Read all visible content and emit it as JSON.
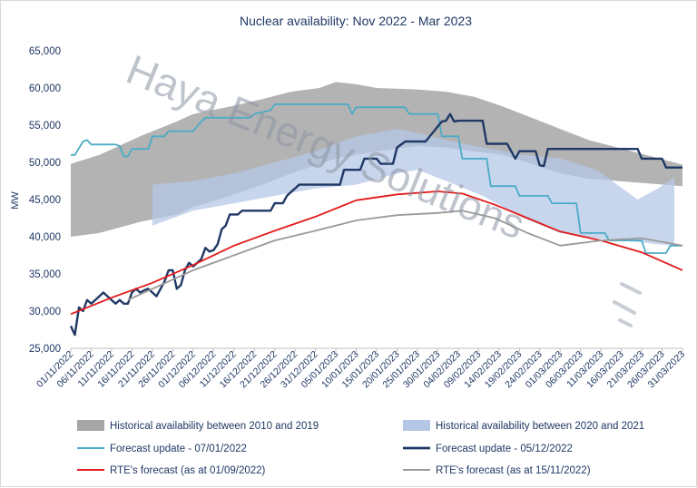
{
  "chart_data": {
    "type": "line",
    "title": "Nuclear availability: Nov 2022 - Mar 2023",
    "ylabel": "MW",
    "xlabel": "",
    "ylim": [
      25000,
      65000
    ],
    "yticks": [
      25000,
      30000,
      35000,
      40000,
      45000,
      50000,
      55000,
      60000,
      65000
    ],
    "ytick_labels": [
      "25,000",
      "30,000",
      "35,000",
      "40,000",
      "45,000",
      "50,000",
      "55,000",
      "60,000",
      "65,000"
    ],
    "x_range": [
      "01/11/2022",
      "31/03/2023"
    ],
    "x_tick_labels": [
      "01/11/2022",
      "06/11/2022",
      "11/11/2022",
      "16/11/2022",
      "21/11/2022",
      "26/11/2022",
      "01/12/2022",
      "06/12/2022",
      "11/12/2022",
      "16/12/2022",
      "21/12/2022",
      "26/12/2022",
      "31/12/2022",
      "05/01/2023",
      "10/01/2023",
      "15/01/2023",
      "20/01/2023",
      "25/01/2023",
      "30/01/2023",
      "04/02/2023",
      "09/02/2023",
      "14/02/2023",
      "19/02/2023",
      "24/02/2023",
      "01/03/2023",
      "06/03/2023",
      "11/03/2023",
      "16/03/2023",
      "21/03/2023",
      "26/03/2023",
      "31/03/2023"
    ],
    "grid": false,
    "legend_position": "bottom",
    "bands": [
      {
        "name": "Historical availability between 2010 and 2019",
        "color": "#a6a6a6",
        "x": [
          "01/11/2022",
          "08/11/2022",
          "18/11/2022",
          "27/11/2022",
          "01/12/2022",
          "10/12/2022",
          "18/12/2022",
          "25/12/2022",
          "01/01/2023",
          "05/01/2023",
          "10/01/2023",
          "15/01/2023",
          "25/01/2023",
          "01/02/2023",
          "08/02/2023",
          "15/02/2023",
          "22/02/2023",
          "01/03/2023",
          "08/03/2023",
          "15/03/2023",
          "22/03/2023",
          "31/03/2023"
        ],
        "upper": [
          49800,
          51000,
          53500,
          55500,
          56500,
          57500,
          58500,
          59500,
          60000,
          60800,
          60500,
          60000,
          59800,
          59500,
          58800,
          57500,
          56000,
          54500,
          53000,
          52000,
          51000,
          49700
        ],
        "lower": [
          40000,
          40500,
          42000,
          43000,
          44000,
          45500,
          47000,
          48500,
          49800,
          50500,
          51000,
          51500,
          52200,
          52000,
          51500,
          51000,
          49800,
          48500,
          47800,
          47500,
          47200,
          46800
        ]
      },
      {
        "name": "Historical availability between 2020 and 2021",
        "color": "#b4c7e7",
        "x": [
          "21/11/2022",
          "01/12/2022",
          "11/12/2022",
          "21/12/2022",
          "31/12/2022",
          "10/01/2023",
          "20/01/2023",
          "25/01/2023",
          "01/02/2023",
          "10/02/2023",
          "20/02/2023",
          "01/03/2023",
          "10/03/2023",
          "15/03/2023",
          "20/03/2023",
          "25/03/2023",
          "29/03/2023"
        ],
        "upper": [
          47000,
          47500,
          48500,
          50000,
          51500,
          53500,
          54500,
          54000,
          53000,
          52000,
          51000,
          50500,
          49000,
          47000,
          45000,
          46500,
          48000
        ],
        "lower": [
          41500,
          43500,
          44500,
          45500,
          46500,
          47000,
          48500,
          49000,
          47500,
          45500,
          42500,
          40500,
          39800,
          39500,
          39300,
          39000,
          38800
        ]
      }
    ],
    "series": [
      {
        "name": "Forecast update -  07/01/2022",
        "color": "#4bacc6",
        "x": [
          "01/11/2022",
          "02/11/2022",
          "04/11/2022",
          "05/11/2022",
          "06/11/2022",
          "12/11/2022",
          "13/11/2022",
          "14/11/2022",
          "15/11/2022",
          "16/11/2022",
          "17/11/2022",
          "20/11/2022",
          "21/11/2022",
          "24/11/2022",
          "25/11/2022",
          "30/11/2022",
          "01/12/2022",
          "03/12/2022",
          "04/12/2022",
          "15/12/2022",
          "16/12/2022",
          "20/12/2022",
          "21/12/2022",
          "08/01/2023",
          "09/01/2023",
          "10/01/2023",
          "22/01/2023",
          "23/01/2023",
          "30/01/2023",
          "31/01/2023",
          "04/02/2023",
          "05/02/2023",
          "11/02/2023",
          "12/02/2023",
          "18/02/2023",
          "19/02/2023",
          "26/02/2023",
          "27/02/2023",
          "05/03/2023",
          "06/03/2023",
          "12/03/2023",
          "13/03/2023",
          "21/03/2023",
          "22/03/2023",
          "27/03/2023",
          "28/03/2023",
          "31/03/2023"
        ],
        "y": [
          51000,
          51000,
          52800,
          53000,
          52400,
          52400,
          52200,
          50800,
          50800,
          51800,
          51800,
          51800,
          53500,
          53500,
          54200,
          54200,
          54200,
          55500,
          56000,
          56000,
          56500,
          57000,
          57800,
          57800,
          56500,
          57400,
          57400,
          56500,
          56500,
          53500,
          53500,
          50500,
          50500,
          46800,
          46800,
          45500,
          45500,
          44500,
          44500,
          40500,
          40500,
          39500,
          39500,
          37800,
          37800,
          38800,
          38800
        ]
      },
      {
        "name": "Forecast update - 05/12/2022",
        "color": "#1f3864",
        "x": [
          "01/11/2022",
          "02/11/2022",
          "03/11/2022",
          "04/11/2022",
          "05/11/2022",
          "06/11/2022",
          "07/11/2022",
          "08/11/2022",
          "09/11/2022",
          "10/11/2022",
          "11/11/2022",
          "12/11/2022",
          "13/11/2022",
          "14/11/2022",
          "15/11/2022",
          "16/11/2022",
          "17/11/2022",
          "18/11/2022",
          "19/11/2022",
          "20/11/2022",
          "21/11/2022",
          "22/11/2022",
          "23/11/2022",
          "24/11/2022",
          "25/11/2022",
          "26/11/2022",
          "27/11/2022",
          "28/11/2022",
          "29/11/2022",
          "30/11/2022",
          "01/12/2022",
          "02/12/2022",
          "03/12/2022",
          "04/12/2022",
          "05/12/2022",
          "06/12/2022",
          "07/12/2022",
          "08/12/2022",
          "09/12/2022",
          "10/12/2022",
          "12/12/2022",
          "13/12/2022",
          "20/12/2022",
          "21/12/2022",
          "23/12/2022",
          "24/12/2022",
          "25/12/2022",
          "26/12/2022",
          "27/12/2022",
          "06/01/2023",
          "07/01/2023",
          "11/01/2023",
          "12/01/2023",
          "15/01/2023",
          "16/01/2023",
          "19/01/2023",
          "20/01/2023",
          "22/01/2023",
          "23/01/2023",
          "27/01/2023",
          "31/01/2023",
          "01/02/2023",
          "02/02/2023",
          "03/02/2023",
          "04/02/2023",
          "05/02/2023",
          "10/02/2023",
          "11/02/2023",
          "16/02/2023",
          "17/02/2023",
          "18/02/2023",
          "19/02/2023",
          "23/02/2023",
          "24/02/2023",
          "25/02/2023",
          "26/02/2023",
          "27/02/2023",
          "20/03/2023",
          "21/03/2023",
          "26/03/2023",
          "27/03/2023",
          "31/03/2023"
        ],
        "y": [
          28000,
          26800,
          30500,
          30000,
          31500,
          31000,
          31500,
          32000,
          32500,
          32000,
          31500,
          31000,
          31500,
          31000,
          31000,
          32500,
          33000,
          32500,
          32800,
          33000,
          32500,
          32000,
          33000,
          34000,
          35500,
          35500,
          33000,
          33500,
          35500,
          36500,
          36000,
          36500,
          37000,
          38500,
          38000,
          38200,
          39000,
          41000,
          41500,
          43000,
          43000,
          43500,
          43500,
          44500,
          44500,
          45500,
          46000,
          46500,
          47000,
          47000,
          49000,
          49000,
          50500,
          50500,
          49800,
          49800,
          52000,
          52800,
          52800,
          52800,
          55500,
          55600,
          56500,
          55500,
          55600,
          55600,
          55600,
          52500,
          52500,
          51500,
          50500,
          51500,
          51500,
          49600,
          49500,
          51800,
          51800,
          51800,
          50500,
          50500,
          49300,
          49300
        ]
      },
      {
        "name": "RTE's forecast (as at 01/09/2022)",
        "color": "#e21a1a",
        "x": [
          "01/11/2022",
          "11/11/2022",
          "21/11/2022",
          "01/12/2022",
          "11/12/2022",
          "21/12/2022",
          "31/12/2022",
          "10/01/2023",
          "20/01/2023",
          "30/01/2023",
          "05/02/2023",
          "13/02/2023",
          "21/02/2023",
          "01/03/2023",
          "11/03/2023",
          "21/03/2023",
          "31/03/2023"
        ],
        "y": [
          29600,
          31800,
          33800,
          36200,
          38800,
          40800,
          42700,
          44900,
          45700,
          46100,
          45800,
          44300,
          42500,
          40700,
          39500,
          37900,
          35500
        ]
      },
      {
        "name": "RTE's forecast (as at 15/11/2022)",
        "color": "#9a9a9a",
        "x": [
          "15/11/2022",
          "21/11/2022",
          "01/12/2022",
          "11/12/2022",
          "21/12/2022",
          "31/12/2022",
          "10/01/2023",
          "20/01/2023",
          "30/01/2023",
          "05/02/2023",
          "13/02/2023",
          "21/02/2023",
          "01/03/2023",
          "11/03/2023",
          "21/03/2023",
          "31/03/2023"
        ],
        "y": [
          31500,
          33000,
          35500,
          37500,
          39500,
          40800,
          42200,
          42900,
          43200,
          43500,
          42500,
          40500,
          38800,
          39500,
          39800,
          38800
        ]
      }
    ],
    "watermark": "Haya Energy Solutions"
  }
}
